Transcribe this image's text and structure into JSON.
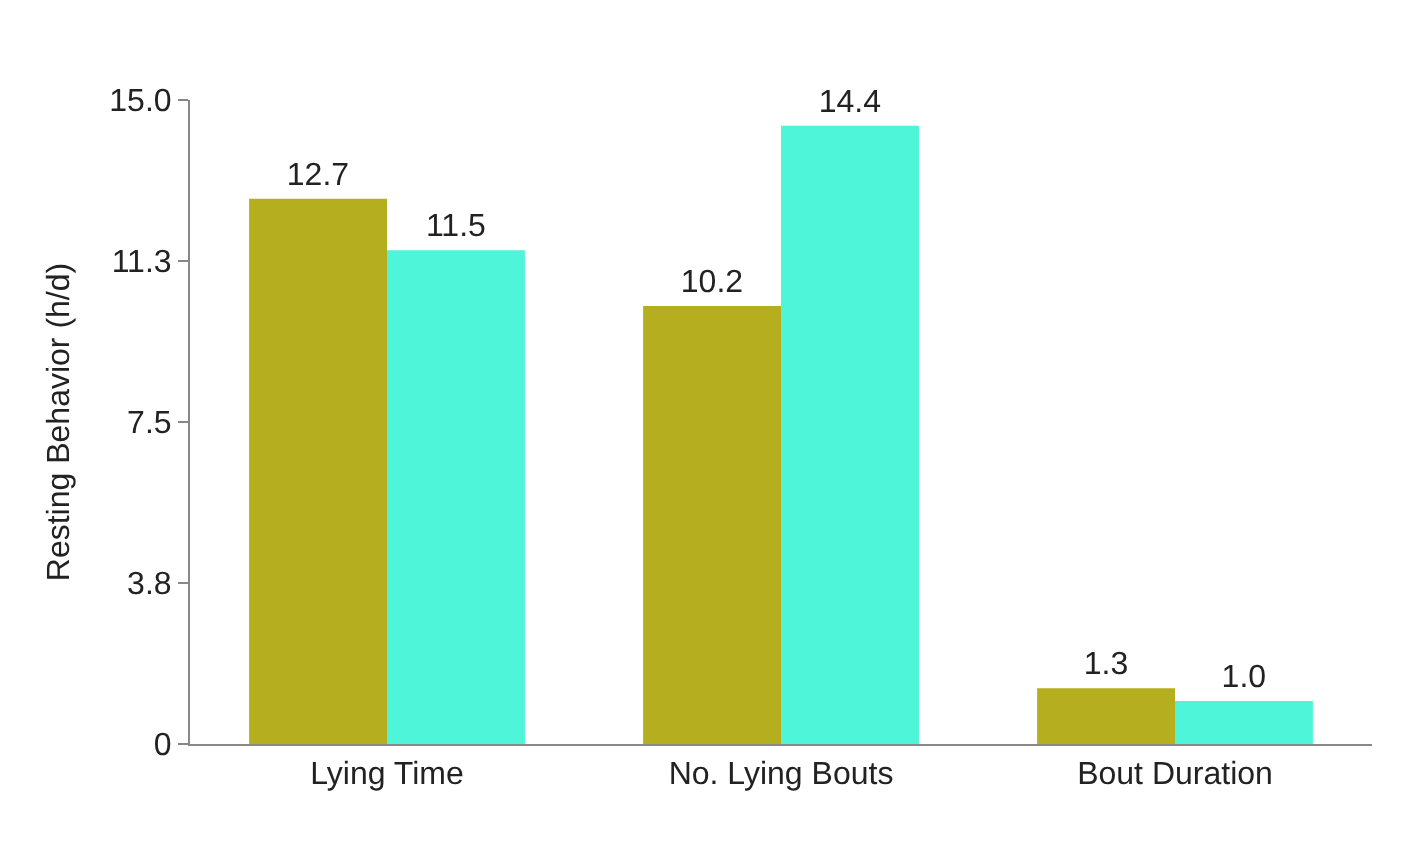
{
  "chart_data": {
    "type": "bar",
    "ylabel": "Resting Behavior (h/d)",
    "categories": [
      "Lying Time",
      "No. Lying Bouts",
      "Bout Duration"
    ],
    "series": [
      {
        "color": "#b5ae1e",
        "values": [
          12.7,
          10.2,
          1.3
        ],
        "value_labels": [
          "12.7",
          "10.2",
          "1.3"
        ]
      },
      {
        "color": "#4ef5d9",
        "values": [
          11.5,
          14.4,
          1.0
        ],
        "value_labels": [
          "11.5",
          "14.4",
          "1.0"
        ]
      }
    ],
    "ylim": [
      0,
      15
    ],
    "yticks": [
      0,
      {
        "value": 3.75,
        "label": "3.8"
      },
      {
        "value": 7.5,
        "label": "7.5"
      },
      {
        "value": 11.25,
        "label": "11.3"
      },
      {
        "value": 15,
        "label": "15.0"
      }
    ]
  }
}
